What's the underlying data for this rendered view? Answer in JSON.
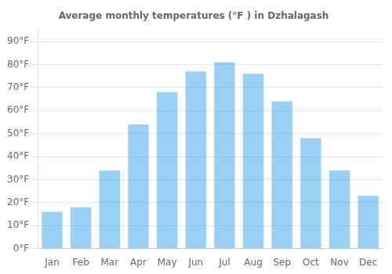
{
  "chart_data": {
    "type": "bar",
    "title": "Average monthly temperatures (°F ) in Dzhalagash",
    "categories": [
      "Jan",
      "Feb",
      "Mar",
      "Apr",
      "May",
      "Jun",
      "Jul",
      "Aug",
      "Sep",
      "Oct",
      "Nov",
      "Dec"
    ],
    "values": [
      16,
      18,
      34,
      54,
      68,
      77,
      81,
      76,
      64,
      48,
      34,
      23
    ],
    "ylim": [
      0,
      95
    ],
    "yticks": [
      {
        "value": 0,
        "label": "0°F"
      },
      {
        "value": 10,
        "label": "10°F"
      },
      {
        "value": 20,
        "label": "20°F"
      },
      {
        "value": 30,
        "label": "30°F"
      },
      {
        "value": 40,
        "label": "40°F"
      },
      {
        "value": 50,
        "label": "50°F"
      },
      {
        "value": 60,
        "label": "60°F"
      },
      {
        "value": 70,
        "label": "70°F"
      },
      {
        "value": 80,
        "label": "80°F"
      },
      {
        "value": 90,
        "label": "90°F"
      }
    ],
    "grid": true
  }
}
